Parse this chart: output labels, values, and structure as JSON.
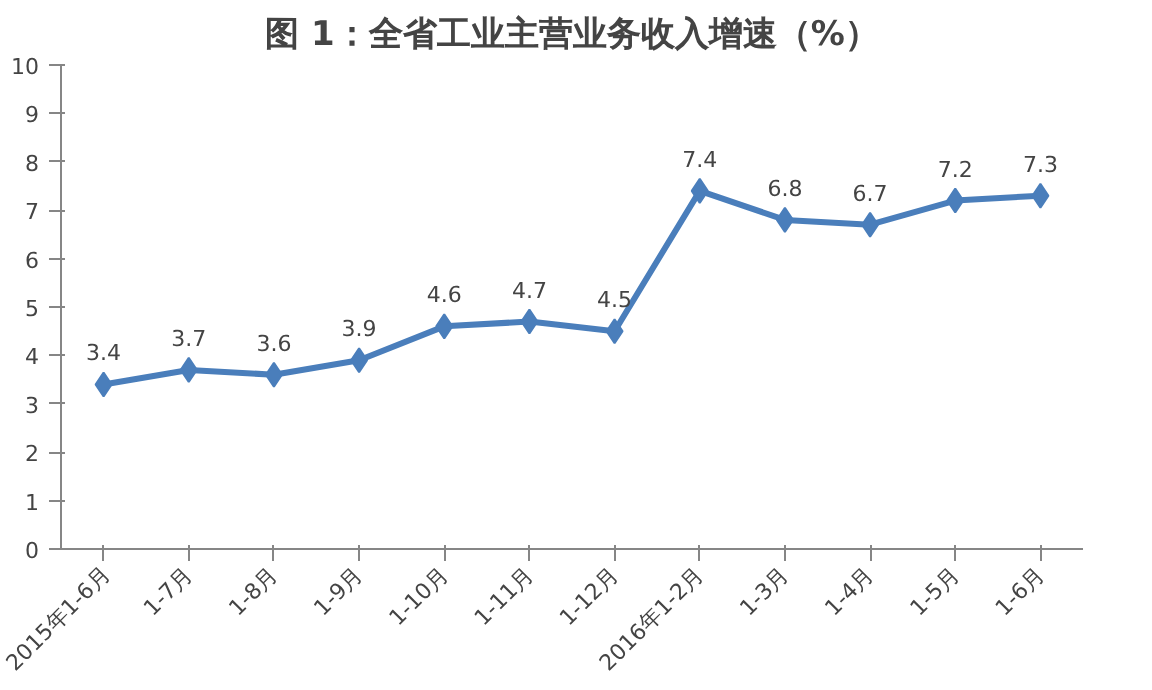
{
  "chart_data": {
    "type": "line",
    "title": "图 1：全省工业主营业务收入增速（%）",
    "categories": [
      "2015年1-6月",
      "1-7月",
      "1-8月",
      "1-9月",
      "1-10月",
      "1-11月",
      "1-12月",
      "2016年1-2月",
      "1-3月",
      "1-4月",
      "1-5月",
      "1-6月"
    ],
    "series": [
      {
        "color": "#4a7ebb",
        "values": [
          3.4,
          3.7,
          3.6,
          3.9,
          4.6,
          4.7,
          4.5,
          7.4,
          6.8,
          6.7,
          7.2,
          7.3
        ]
      }
    ],
    "ylim": [
      0,
      10
    ],
    "yticks": [
      0,
      1,
      2,
      3,
      4,
      5,
      6,
      7,
      8,
      9,
      10
    ],
    "grid": false,
    "marker": "diamond",
    "line_style": "solid",
    "data_labels": true
  }
}
